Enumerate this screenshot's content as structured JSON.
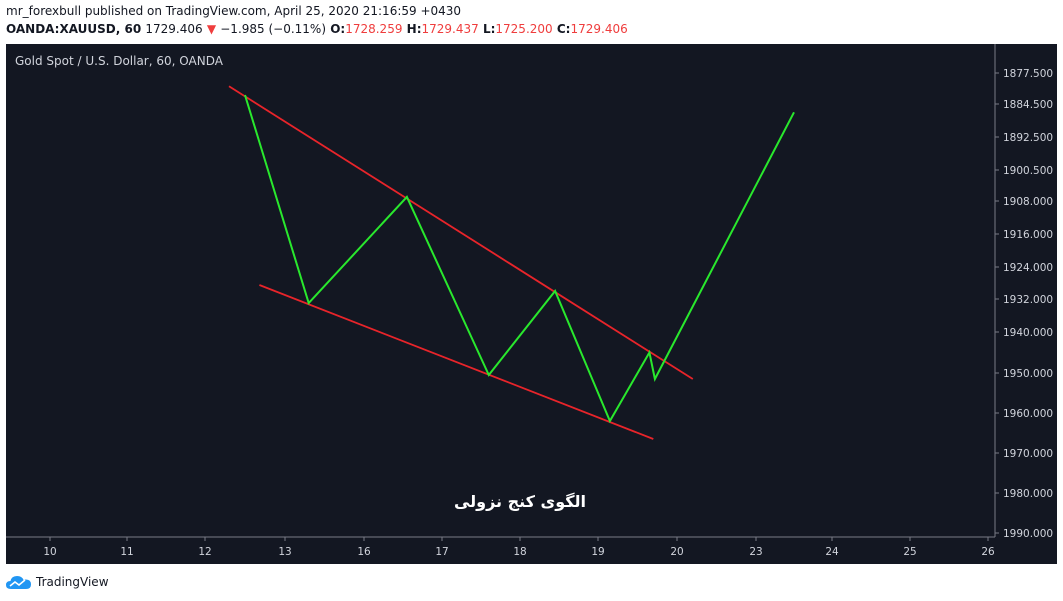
{
  "header": {
    "publisher_line": "mr_forexbull published on TradingView.com, April 25, 2020 21:16:59 +0430",
    "symbol": "OANDA:XAUUSD, 60",
    "last_price": "1729.406",
    "change": "−1.985 (−0.11%)",
    "open_label": "O:",
    "open_value": "1728.259",
    "high_label": "H:",
    "high_value": "1729.437",
    "low_label": "L:",
    "low_value": "1725.200",
    "close_label": "C:",
    "close_value": "1729.406"
  },
  "footer": {
    "brand": "TradingView"
  },
  "colors": {
    "background": "#131722",
    "wave": "#29e82d",
    "trendline": "#e8242a",
    "axis_text": "#d1d4dc",
    "down_arrow": "#ef3d3d"
  },
  "chart_data": {
    "type": "line",
    "title": "Gold Spot / U.S. Dollar, 60, OANDA",
    "y_axis": {
      "position": "right",
      "inverted": true,
      "scale": "nonlinear",
      "ticks": [
        1877.5,
        1884.5,
        1892.5,
        1900.5,
        1908.0,
        1916.0,
        1924.0,
        1932.0,
        1940.0,
        1950.0,
        1960.0,
        1970.0,
        1980.0,
        1990.0
      ],
      "tick_labels": [
        "1877.500",
        "1884.500",
        "1892.500",
        "1900.500",
        "1908.000",
        "1916.000",
        "1924.000",
        "1932.000",
        "1940.000",
        "1950.000",
        "1960.000",
        "1970.000",
        "1980.000",
        "1990.000"
      ]
    },
    "x_axis": {
      "ticks": [
        10,
        11,
        12,
        13,
        16,
        17,
        18,
        19,
        20,
        23,
        24,
        25,
        26
      ],
      "tick_labels": [
        "10",
        "11",
        "12",
        "13",
        "16",
        "17",
        "18",
        "19",
        "20",
        "23",
        "24",
        "25",
        "26"
      ],
      "tick_index": [
        0,
        1,
        2,
        3,
        4,
        5,
        6,
        7,
        8,
        9,
        10,
        11,
        12
      ]
    },
    "series": [
      {
        "role": "wave",
        "color": "#29e82d",
        "x": [
          2.5,
          3.3,
          4.55,
          5.6,
          6.45,
          7.15,
          7.65,
          7.72,
          9.5
        ],
        "y": [
          1882.5,
          1933.0,
          1907.0,
          1950.5,
          1930.0,
          1962.0,
          1945.0,
          1951.5,
          1886.5
        ]
      },
      {
        "role": "upper-trendline",
        "color": "#e8242a",
        "x": [
          2.3,
          8.2
        ],
        "y": [
          1880.5,
          1951.5
        ]
      },
      {
        "role": "lower-trendline",
        "color": "#e8242a",
        "x": [
          2.68,
          7.7
        ],
        "y": [
          1928.5,
          1966.5
        ]
      }
    ],
    "annotations": [
      {
        "text": "الگوی کنج نزولی",
        "x": 6.0,
        "y": 1982.0
      }
    ],
    "grid": false,
    "legend": "none"
  }
}
